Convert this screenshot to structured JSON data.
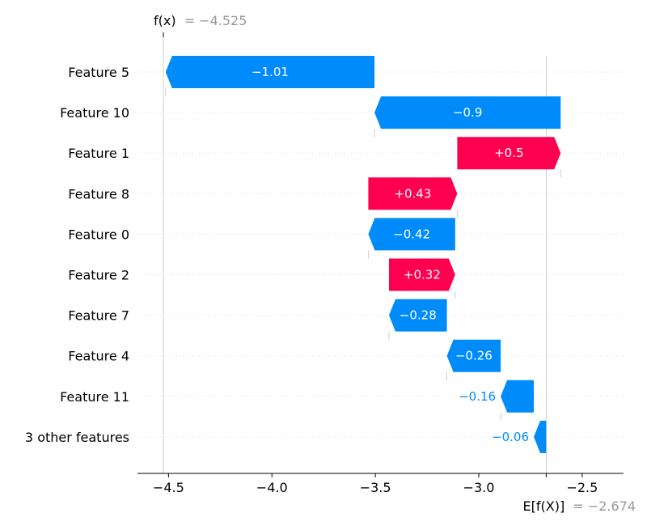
{
  "chart_data": {
    "type": "waterfall",
    "fx_label": "f(x)",
    "fx_value": "= −4.525",
    "fx": -4.525,
    "efx_label": "E[f(X)]",
    "efx_value": "= −2.674",
    "efx": -2.674,
    "xlim": [
      -4.65,
      -2.3
    ],
    "xticks": [
      -4.5,
      -4.0,
      -3.5,
      -3.0,
      -2.5
    ],
    "xtick_labels": [
      "−4.5",
      "−4.0",
      "−3.5",
      "−3.0",
      "−2.5"
    ],
    "features": [
      {
        "name": "Feature 5",
        "value": -1.01,
        "label": "−1.01"
      },
      {
        "name": "Feature 10",
        "value": -0.9,
        "label": "−0.9"
      },
      {
        "name": "Feature 1",
        "value": 0.5,
        "label": "+0.5"
      },
      {
        "name": "Feature 8",
        "value": 0.43,
        "label": "+0.43"
      },
      {
        "name": "Feature 0",
        "value": -0.42,
        "label": "−0.42"
      },
      {
        "name": "Feature 2",
        "value": 0.32,
        "label": "+0.32"
      },
      {
        "name": "Feature 7",
        "value": -0.28,
        "label": "−0.28"
      },
      {
        "name": "Feature 4",
        "value": -0.26,
        "label": "−0.26"
      },
      {
        "name": "Feature 11",
        "value": -0.16,
        "label": "−0.16"
      },
      {
        "name": "3 other features",
        "value": -0.06,
        "label": "−0.06"
      }
    ],
    "colors": {
      "positive": "#ff0051",
      "negative": "#008bfb",
      "grid": "#e0e0e0",
      "annotation_gray": "#999999"
    }
  }
}
